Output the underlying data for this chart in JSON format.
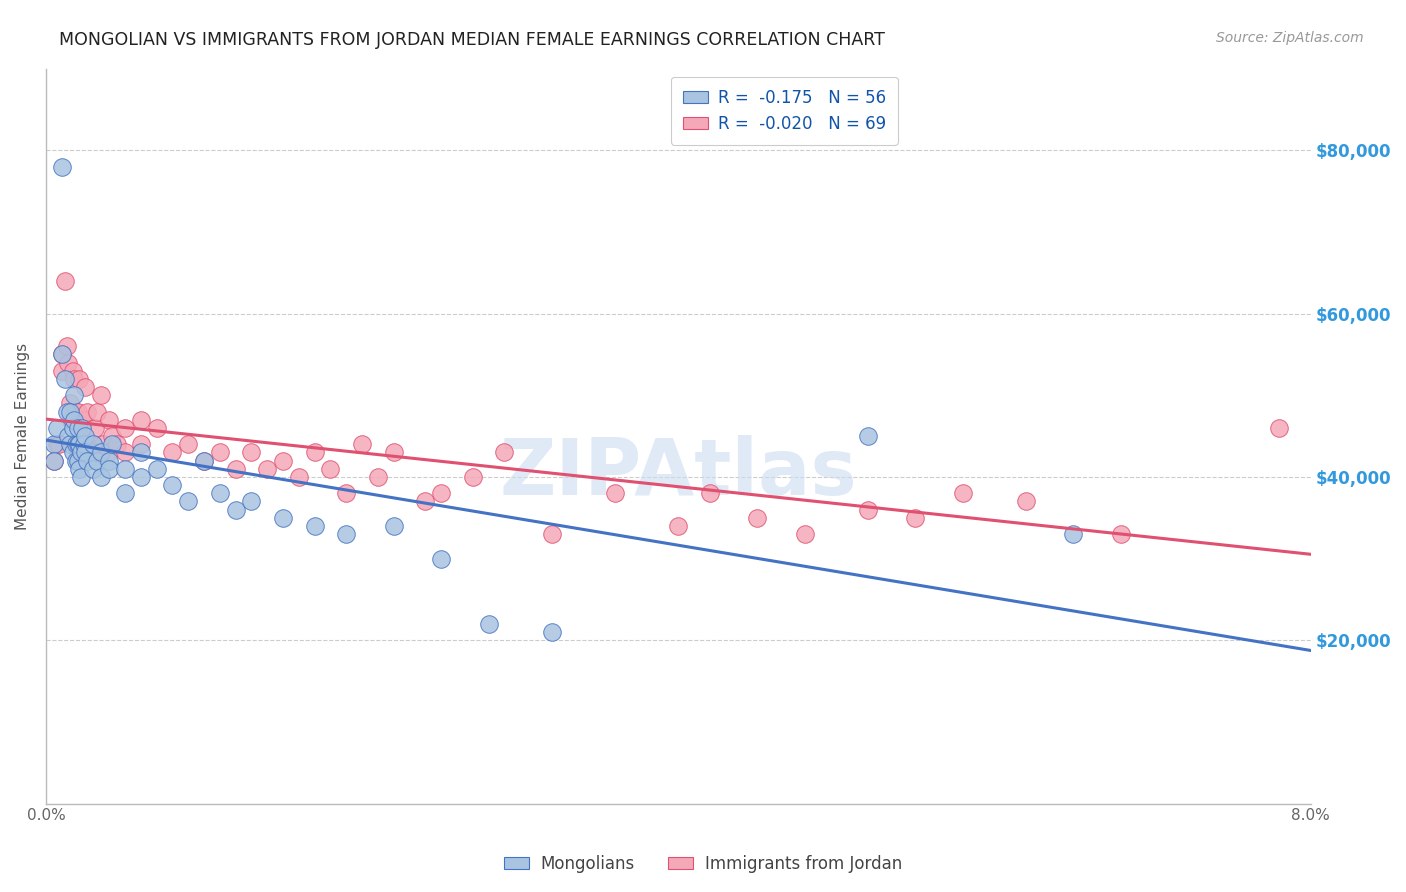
{
  "title": "MONGOLIAN VS IMMIGRANTS FROM JORDAN MEDIAN FEMALE EARNINGS CORRELATION CHART",
  "source": "Source: ZipAtlas.com",
  "ylabel": "Median Female Earnings",
  "right_ytick_labels": [
    "$20,000",
    "$40,000",
    "$60,000",
    "$80,000"
  ],
  "right_ytick_values": [
    20000,
    40000,
    60000,
    80000
  ],
  "legend_entry1": "R =  -0.175   N = 56",
  "legend_entry2": "R =  -0.020   N = 69",
  "legend_label1": "Mongolians",
  "legend_label2": "Immigrants from Jordan",
  "color_mongolian": "#a8c4e0",
  "color_jordan": "#f4a8b8",
  "color_line_mongolian": "#4472c4",
  "color_line_jordan": "#e05070",
  "watermark": "ZIPAtlas",
  "xlim": [
    0.0,
    0.08
  ],
  "ylim": [
    0,
    90000
  ],
  "mongolian_x": [
    0.0005,
    0.0005,
    0.0007,
    0.001,
    0.001,
    0.0012,
    0.0013,
    0.0014,
    0.0015,
    0.0015,
    0.0017,
    0.0017,
    0.0018,
    0.0018,
    0.0019,
    0.0019,
    0.002,
    0.002,
    0.002,
    0.0021,
    0.0021,
    0.0022,
    0.0022,
    0.0023,
    0.0024,
    0.0025,
    0.0025,
    0.0026,
    0.003,
    0.003,
    0.0032,
    0.0035,
    0.0035,
    0.004,
    0.004,
    0.0042,
    0.005,
    0.005,
    0.006,
    0.006,
    0.007,
    0.008,
    0.009,
    0.01,
    0.011,
    0.012,
    0.013,
    0.015,
    0.017,
    0.019,
    0.022,
    0.025,
    0.028,
    0.032,
    0.052,
    0.065
  ],
  "mongolian_y": [
    44000,
    42000,
    46000,
    78000,
    55000,
    52000,
    48000,
    45000,
    48000,
    44000,
    46000,
    43000,
    50000,
    47000,
    44000,
    42000,
    46000,
    44000,
    42000,
    44000,
    41000,
    43000,
    40000,
    46000,
    44000,
    45000,
    43000,
    42000,
    44000,
    41000,
    42000,
    43000,
    40000,
    42000,
    41000,
    44000,
    38000,
    41000,
    40000,
    43000,
    41000,
    39000,
    37000,
    42000,
    38000,
    36000,
    37000,
    35000,
    34000,
    33000,
    34000,
    30000,
    22000,
    21000,
    45000,
    33000
  ],
  "jordan_x": [
    0.0005,
    0.0007,
    0.0008,
    0.001,
    0.001,
    0.0012,
    0.0013,
    0.0014,
    0.0015,
    0.0016,
    0.0017,
    0.0018,
    0.0019,
    0.002,
    0.002,
    0.002,
    0.0021,
    0.0022,
    0.0023,
    0.0024,
    0.0025,
    0.0026,
    0.003,
    0.003,
    0.0031,
    0.0032,
    0.0033,
    0.0035,
    0.0036,
    0.004,
    0.004,
    0.0042,
    0.0045,
    0.005,
    0.005,
    0.006,
    0.006,
    0.007,
    0.008,
    0.009,
    0.01,
    0.011,
    0.012,
    0.013,
    0.014,
    0.015,
    0.016,
    0.017,
    0.018,
    0.019,
    0.02,
    0.021,
    0.022,
    0.024,
    0.025,
    0.027,
    0.029,
    0.032,
    0.036,
    0.04,
    0.042,
    0.045,
    0.048,
    0.052,
    0.055,
    0.058,
    0.062,
    0.068,
    0.078
  ],
  "jordan_y": [
    42000,
    44000,
    44000,
    55000,
    53000,
    64000,
    56000,
    54000,
    49000,
    47000,
    53000,
    52000,
    48000,
    48000,
    45000,
    43000,
    52000,
    46000,
    45000,
    47000,
    51000,
    48000,
    44000,
    43000,
    46000,
    48000,
    43000,
    50000,
    44000,
    47000,
    43000,
    45000,
    44000,
    46000,
    43000,
    47000,
    44000,
    46000,
    43000,
    44000,
    42000,
    43000,
    41000,
    43000,
    41000,
    42000,
    40000,
    43000,
    41000,
    38000,
    44000,
    40000,
    43000,
    37000,
    38000,
    40000,
    43000,
    33000,
    38000,
    34000,
    38000,
    35000,
    33000,
    36000,
    35000,
    38000,
    37000,
    33000,
    46000
  ]
}
